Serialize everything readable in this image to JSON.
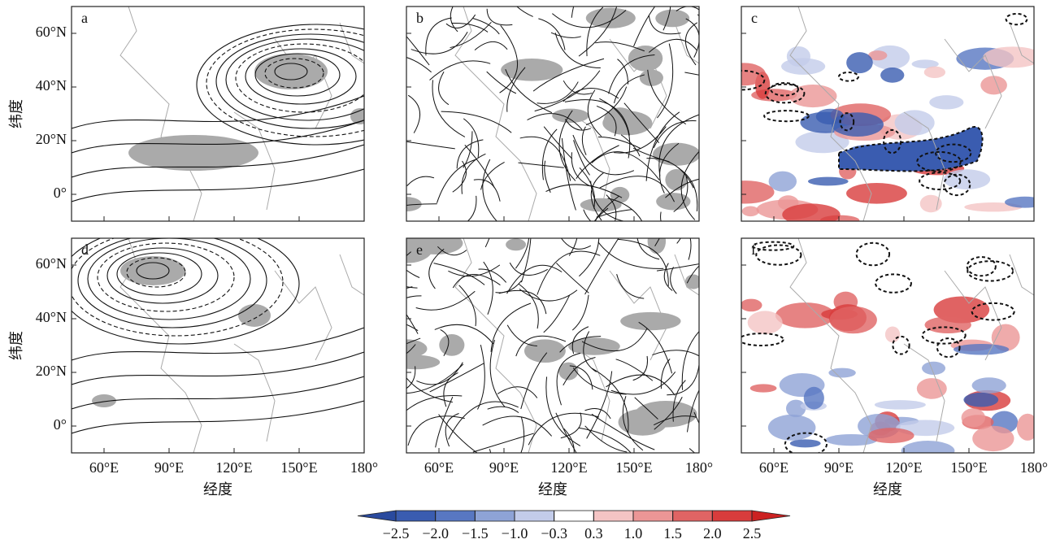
{
  "chart_data": {
    "type": "map-panels",
    "panels": [
      {
        "label": "a"
      },
      {
        "label": "b"
      },
      {
        "label": "c"
      },
      {
        "label": "d"
      },
      {
        "label": "e"
      },
      {
        "label": "f"
      }
    ],
    "xlabel": "经度",
    "ylabel": "纬度",
    "xlim": [
      45,
      180
    ],
    "ylim": [
      -10,
      70
    ],
    "xticks": [
      {
        "value": 60,
        "label": "60°E"
      },
      {
        "value": 90,
        "label": "90°E"
      },
      {
        "value": 120,
        "label": "120°E"
      },
      {
        "value": 150,
        "label": "150°E"
      },
      {
        "value": 180,
        "label": "180°"
      }
    ],
    "yticks": [
      {
        "value": 60,
        "label": "60°N"
      },
      {
        "value": 40,
        "label": "40°N"
      },
      {
        "value": 20,
        "label": "20°N"
      },
      {
        "value": 0,
        "label": "0°"
      }
    ],
    "colorbar": {
      "ticks": [
        {
          "value": -2.5,
          "label": "−2.5"
        },
        {
          "value": -2.0,
          "label": "−2.0"
        },
        {
          "value": -1.5,
          "label": "−1.5"
        },
        {
          "value": -1.0,
          "label": "−1.0"
        },
        {
          "value": -0.3,
          "label": "−0.3"
        },
        0.3,
        {
          "value": 1.0,
          "label": "1.0"
        },
        1.5,
        {
          "value": 2.0,
          "label": "2.0"
        },
        2.5
      ],
      "colors": [
        "#2a4a9e",
        "#3a5cb0",
        "#5877c2",
        "#8ea3d6",
        "#c3ccea",
        "#ffffff",
        "#f4c4c4",
        "#eb9696",
        "#e06464",
        "#d83c3c",
        "#cc2222"
      ]
    }
  }
}
